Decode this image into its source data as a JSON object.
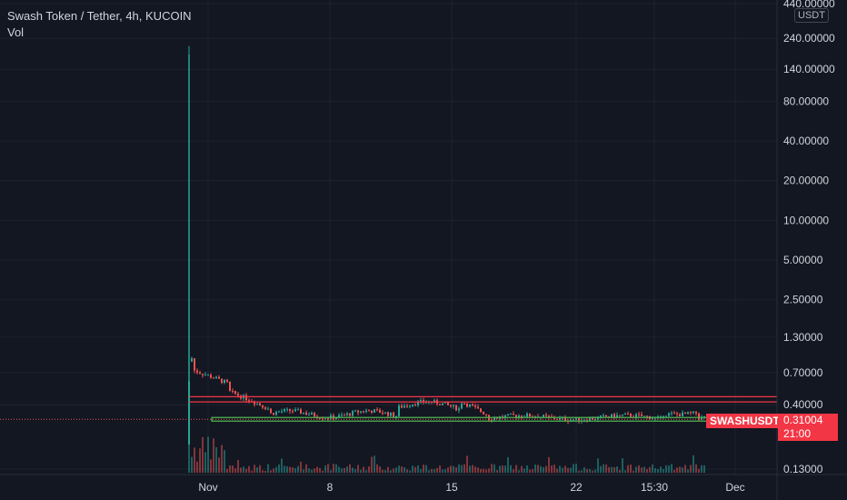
{
  "legend": {
    "symbol": "Swash Token / Tether, 4h, KUCOIN",
    "indicator": "Vol"
  },
  "price_scale": {
    "unit": "USDT",
    "ticks": [
      "440.00000",
      "240.00000",
      "140.00000",
      "80.00000",
      "40.00000",
      "20.00000",
      "10.00000",
      "5.00000",
      "2.50000",
      "1.30000",
      "0.70000",
      "0.40000",
      "0.13000"
    ]
  },
  "time_scale": {
    "ticks": [
      "Nov",
      "8",
      "15",
      "22",
      "15:30",
      "Dec"
    ]
  },
  "current": {
    "symbol_label": "SWASHUSDT",
    "price": "0.31004",
    "countdown": "21:00"
  },
  "colors": {
    "up": "#26a69a",
    "down": "#ef5350",
    "level_line": "#f23645",
    "support_line": "#4caf50",
    "background": "#131722",
    "grid": "#1e2230"
  },
  "chart_data": {
    "type": "candlestick",
    "title": "Swash Token / Tether, 4h, KUCOIN",
    "scale": "log",
    "ylim": [
      0.13,
      440
    ],
    "x_ticks": [
      "Nov",
      "8",
      "15",
      "22",
      "15:30",
      "Dec"
    ],
    "spike_high": 210,
    "post_launch_range": [
      0.3,
      1.0
    ],
    "horizontal_levels": [
      0.46,
      0.42
    ],
    "support_level": 0.31,
    "last_price": 0.31004
  }
}
